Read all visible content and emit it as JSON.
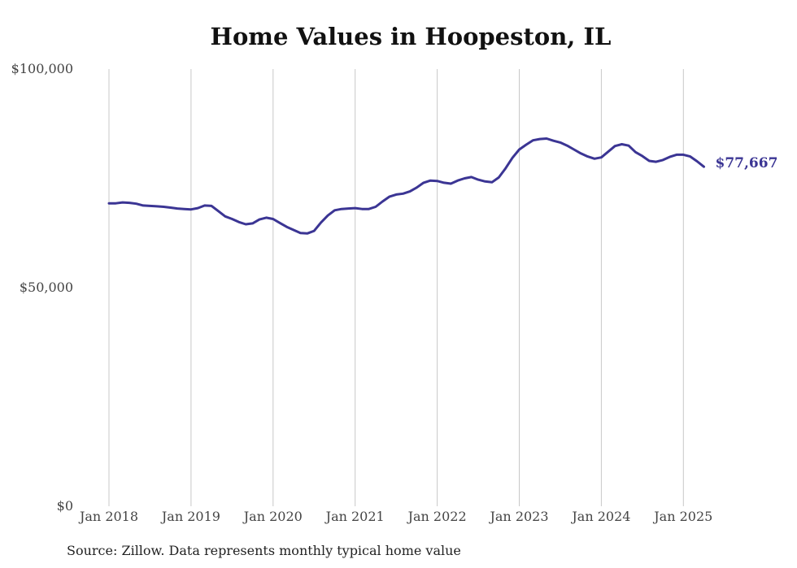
{
  "colors": {
    "line": "#3b3594",
    "grid": "#c8c8c8",
    "axis_text": "#444444"
  },
  "chart_data": {
    "type": "line",
    "title": "Home Values in Hoopeston, IL",
    "source": "Source: Zillow. Data represents monthly typical home value",
    "xlabel": "",
    "ylabel": "",
    "ylim": [
      0,
      100000
    ],
    "yticks": [
      {
        "value": 0,
        "label": "$0"
      },
      {
        "value": 50000,
        "label": "$50,000"
      },
      {
        "value": 100000,
        "label": "$100,000"
      }
    ],
    "xticks": [
      "Jan 2018",
      "Jan 2019",
      "Jan 2020",
      "Jan 2021",
      "Jan 2022",
      "Jan 2023",
      "Jan 2024",
      "Jan 2025"
    ],
    "grid": "vertical",
    "end_label": "$77,667",
    "series": [
      {
        "x": [
          "2018-01",
          "2018-02",
          "2018-03",
          "2018-04",
          "2018-05",
          "2018-06",
          "2018-07",
          "2018-08",
          "2018-09",
          "2018-10",
          "2018-11",
          "2018-12",
          "2019-01",
          "2019-02",
          "2019-03",
          "2019-04",
          "2019-05",
          "2019-06",
          "2019-07",
          "2019-08",
          "2019-09",
          "2019-10",
          "2019-11",
          "2019-12",
          "2020-01",
          "2020-02",
          "2020-03",
          "2020-04",
          "2020-05",
          "2020-06",
          "2020-07",
          "2020-08",
          "2020-09",
          "2020-10",
          "2020-11",
          "2020-12",
          "2021-01",
          "2021-02",
          "2021-03",
          "2021-04",
          "2021-05",
          "2021-06",
          "2021-07",
          "2021-08",
          "2021-09",
          "2021-10",
          "2021-11",
          "2021-12",
          "2022-01",
          "2022-02",
          "2022-03",
          "2022-04",
          "2022-05",
          "2022-06",
          "2022-07",
          "2022-08",
          "2022-09",
          "2022-10",
          "2022-11",
          "2022-12",
          "2023-01",
          "2023-02",
          "2023-03",
          "2023-04",
          "2023-05",
          "2023-06",
          "2023-07",
          "2023-08",
          "2023-09",
          "2023-10",
          "2023-11",
          "2023-12",
          "2024-01",
          "2024-02",
          "2024-03",
          "2024-04",
          "2024-05",
          "2024-06",
          "2024-07",
          "2024-08",
          "2024-09",
          "2024-10",
          "2024-11",
          "2024-12",
          "2025-01",
          "2025-02",
          "2025-03",
          "2025-04"
        ],
        "values": [
          69300,
          69300,
          69500,
          69400,
          69200,
          68800,
          68700,
          68600,
          68500,
          68300,
          68100,
          68000,
          67900,
          68200,
          68800,
          68700,
          67500,
          66300,
          65700,
          65000,
          64500,
          64700,
          65600,
          66000,
          65700,
          64800,
          63900,
          63200,
          62500,
          62400,
          63000,
          64900,
          66500,
          67700,
          68000,
          68100,
          68200,
          68000,
          68000,
          68500,
          69700,
          70800,
          71300,
          71500,
          72000,
          72900,
          74000,
          74500,
          74400,
          74000,
          73800,
          74500,
          75000,
          75300,
          74700,
          74300,
          74100,
          75200,
          77300,
          79700,
          81600,
          82700,
          83700,
          84000,
          84100,
          83600,
          83200,
          82500,
          81600,
          80700,
          80000,
          79500,
          79800,
          81100,
          82400,
          82800,
          82500,
          81000,
          80100,
          79000,
          78800,
          79200,
          79900,
          80400,
          80400,
          80000,
          78900,
          77667
        ]
      }
    ]
  }
}
